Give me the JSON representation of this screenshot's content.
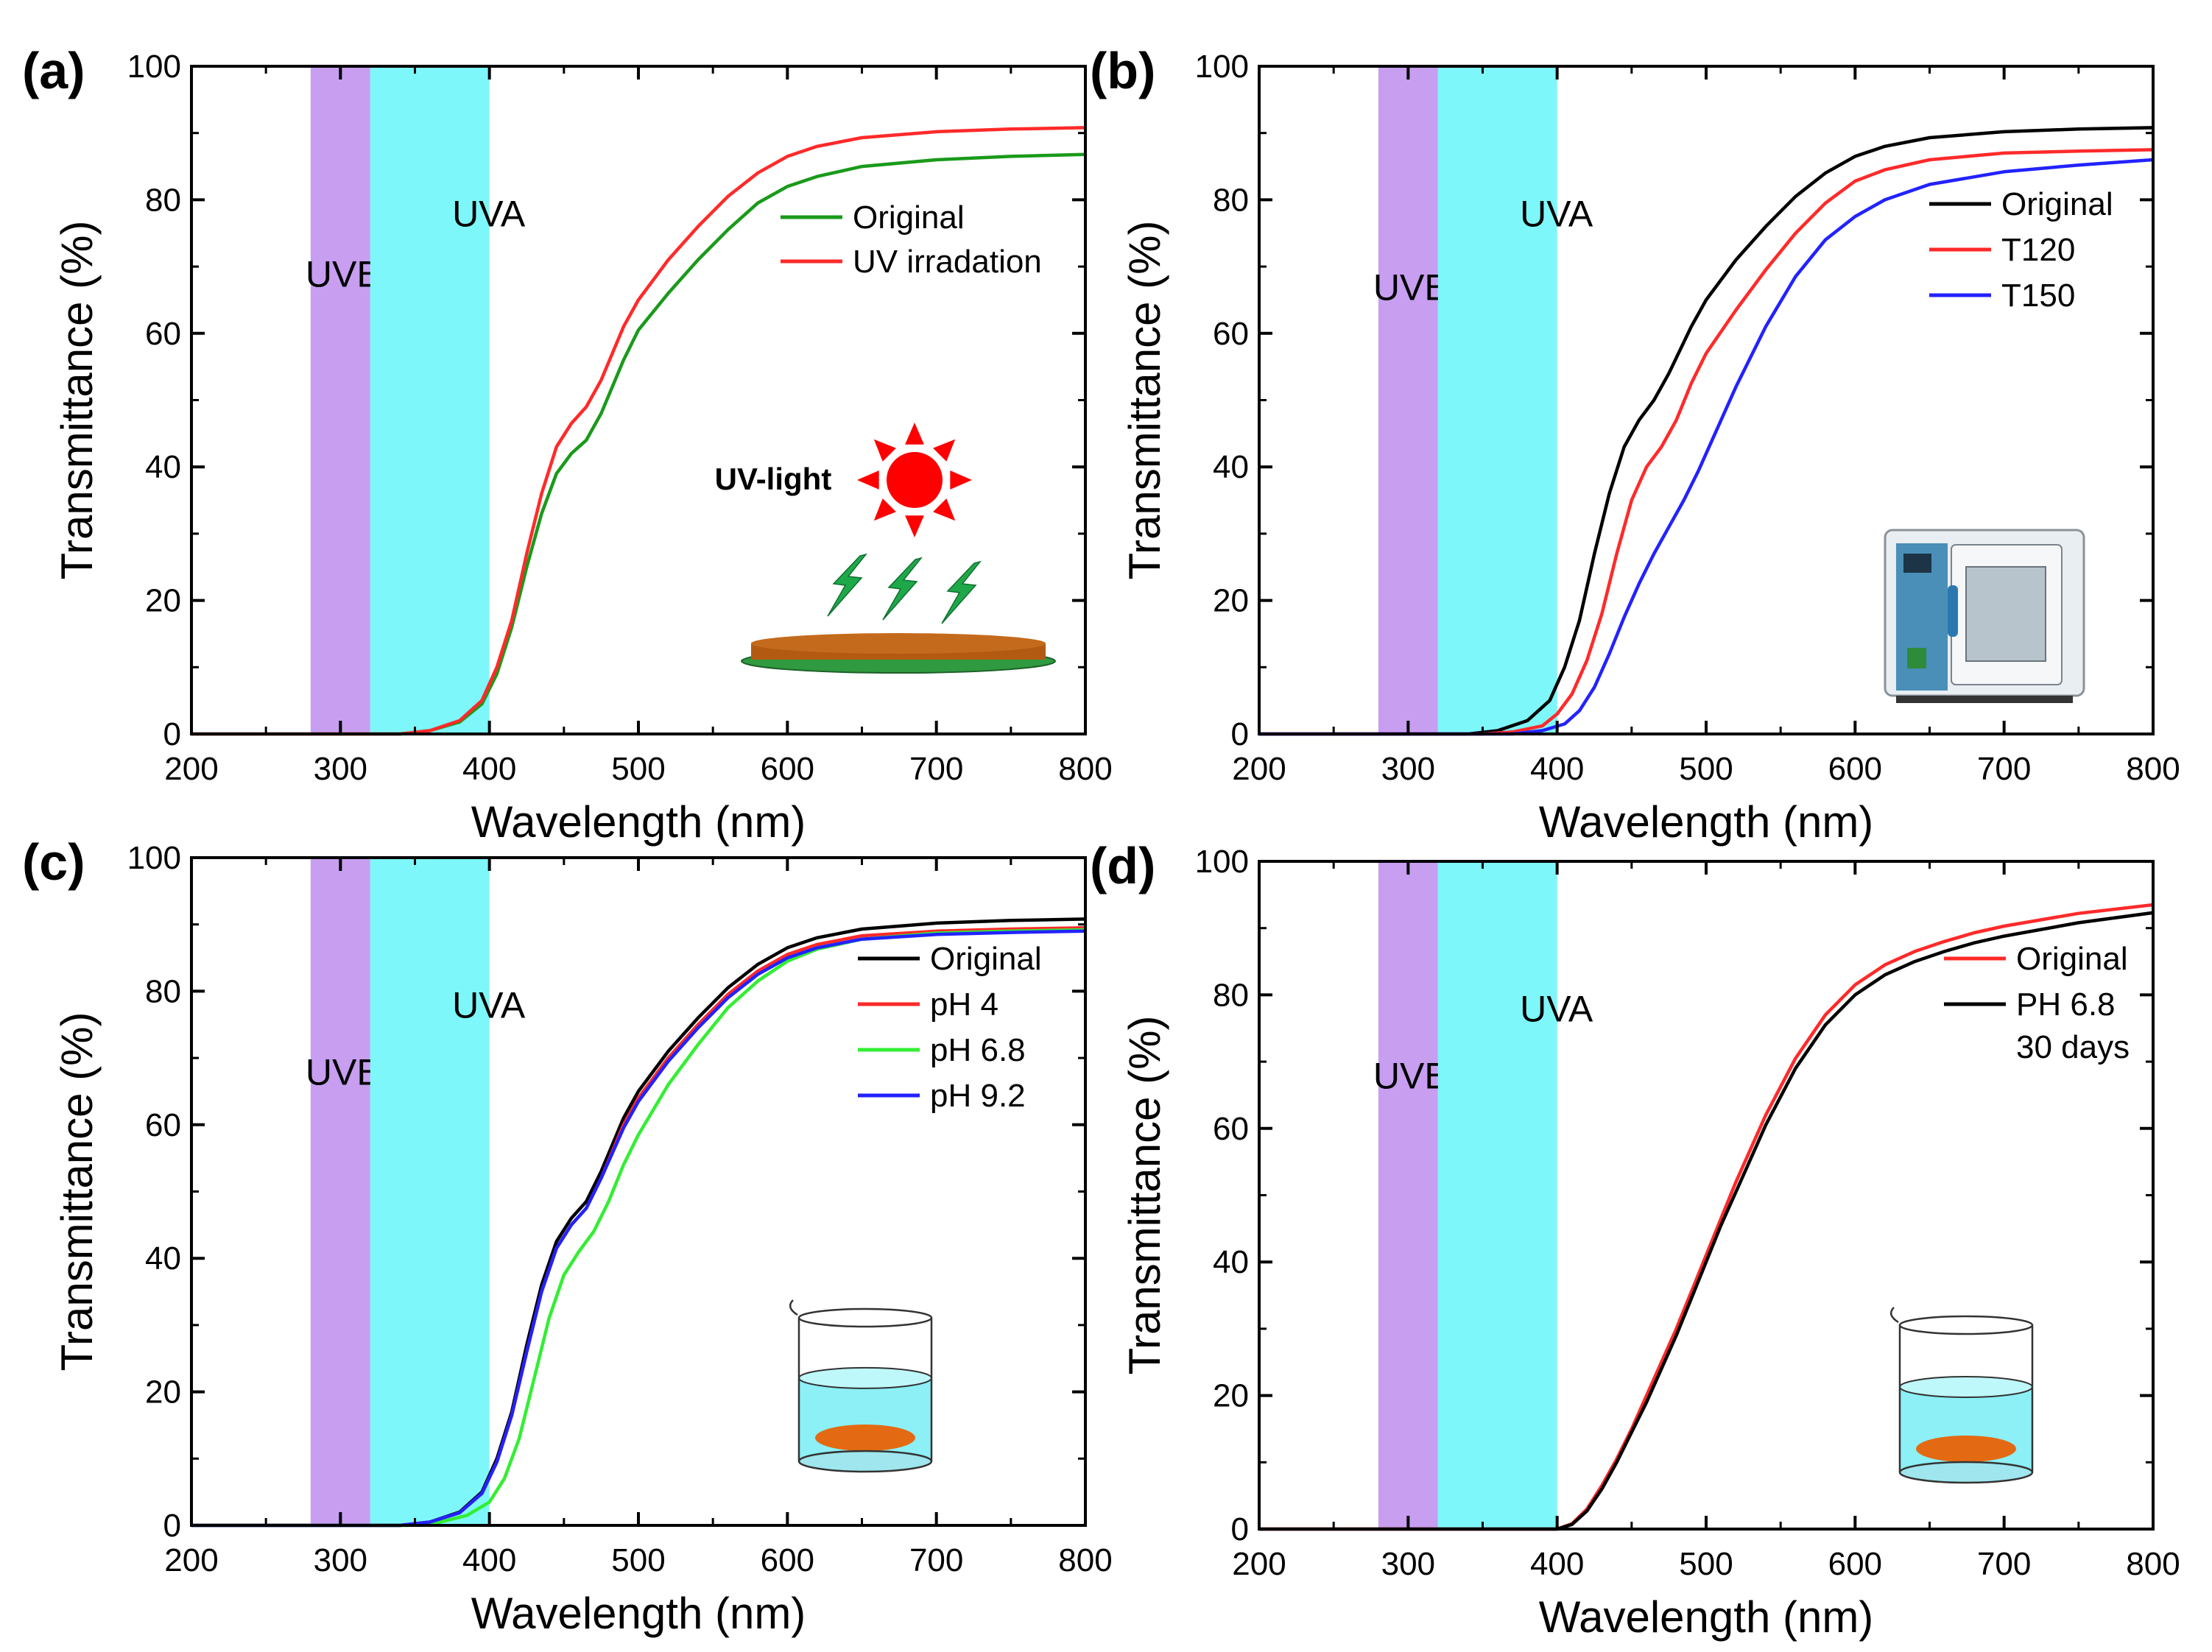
{
  "colors": {
    "uvb_band": "#c79ef0",
    "uva_band": "#7df7fa",
    "black": "#000000",
    "red": "#ff2a2a",
    "green": "#1a9a1a",
    "lime": "#33ee33",
    "blue": "#2222ff",
    "sun": "#ff0000",
    "bolt": "#1fa84a",
    "disk": "#c46a1c",
    "disk_base": "#2f9a3f",
    "water": "#8cf0f6",
    "sample": "#e36a12"
  },
  "chart_data": [
    {
      "type": "line",
      "panel_label": "(a)",
      "xlabel": "Wavelength (nm)",
      "ylabel": "Transmittance (%)",
      "xlim": [
        200,
        800
      ],
      "ylim": [
        0,
        100
      ],
      "xticks": [
        "200",
        "300",
        "400",
        "500",
        "600",
        "700",
        "800"
      ],
      "yticks": [
        "0",
        "20",
        "40",
        "60",
        "80",
        "100"
      ],
      "bands": [
        {
          "label": "UVB",
          "from": 280,
          "to": 320,
          "label_y": 67
        },
        {
          "label": "UVA",
          "from": 320,
          "to": 400,
          "label_y": 76
        }
      ],
      "legend_position": "top-right",
      "inset": "uv_light",
      "inset_label": "UV-light",
      "series": [
        {
          "name": "Original",
          "color": "green",
          "x": [
            200,
            340,
            360,
            380,
            395,
            405,
            415,
            425,
            435,
            445,
            455,
            465,
            475,
            490,
            500,
            520,
            540,
            560,
            580,
            600,
            620,
            650,
            700,
            750,
            800
          ],
          "y": [
            0,
            0,
            0.5,
            1.8,
            4.5,
            9,
            16,
            25,
            33,
            39,
            42,
            44,
            48,
            56,
            60.5,
            66,
            71,
            75.5,
            79.5,
            82,
            83.5,
            85,
            86,
            86.5,
            86.8
          ]
        },
        {
          "name": "UV irradation",
          "color": "red",
          "x": [
            200,
            340,
            360,
            380,
            395,
            405,
            415,
            425,
            435,
            445,
            455,
            465,
            475,
            490,
            500,
            520,
            540,
            560,
            580,
            600,
            620,
            650,
            700,
            750,
            800
          ],
          "y": [
            0,
            0,
            0.5,
            2,
            5,
            10,
            17,
            27,
            36,
            43,
            46.5,
            49,
            53,
            61,
            65,
            71,
            76,
            80.5,
            84,
            86.5,
            88,
            89.3,
            90.2,
            90.6,
            90.8
          ]
        }
      ]
    },
    {
      "type": "line",
      "panel_label": "(b)",
      "xlabel": "Wavelength (nm)",
      "ylabel": "Transmittance (%)",
      "xlim": [
        200,
        800
      ],
      "ylim": [
        0,
        100
      ],
      "xticks": [
        "200",
        "300",
        "400",
        "500",
        "600",
        "700",
        "800"
      ],
      "yticks": [
        "0",
        "20",
        "40",
        "60",
        "80",
        "100"
      ],
      "bands": [
        {
          "label": "UVB",
          "from": 280,
          "to": 320,
          "label_y": 65
        },
        {
          "label": "UVA",
          "from": 320,
          "to": 400,
          "label_y": 76
        }
      ],
      "legend_position": "top-right",
      "inset": "oven",
      "series": [
        {
          "name": "Original",
          "color": "black",
          "x": [
            200,
            340,
            360,
            380,
            395,
            405,
            415,
            425,
            435,
            445,
            455,
            465,
            475,
            490,
            500,
            520,
            540,
            560,
            580,
            600,
            620,
            650,
            700,
            750,
            800
          ],
          "y": [
            0,
            0,
            0.5,
            2,
            5,
            10,
            17,
            27,
            36,
            43,
            47,
            50,
            54,
            61,
            65,
            71,
            76,
            80.5,
            84,
            86.5,
            88,
            89.3,
            90.2,
            90.6,
            90.8
          ]
        },
        {
          "name": "T120",
          "color": "red",
          "x": [
            200,
            350,
            370,
            390,
            400,
            410,
            420,
            430,
            440,
            450,
            460,
            470,
            480,
            490,
            500,
            520,
            540,
            560,
            580,
            600,
            620,
            650,
            700,
            750,
            800
          ],
          "y": [
            0,
            0,
            0.3,
            1.2,
            3,
            6,
            11,
            18,
            27,
            35,
            40,
            43,
            47,
            52.5,
            57,
            63.5,
            69.5,
            75,
            79.5,
            82.8,
            84.5,
            86,
            87,
            87.3,
            87.5
          ]
        },
        {
          "name": "T150",
          "color": "blue",
          "x": [
            200,
            370,
            390,
            405,
            415,
            425,
            435,
            445,
            455,
            465,
            475,
            485,
            495,
            505,
            520,
            540,
            560,
            580,
            600,
            620,
            650,
            700,
            750,
            800
          ],
          "y": [
            0,
            0,
            0.5,
            1.5,
            3.5,
            7,
            12,
            17.5,
            22.5,
            27,
            31,
            35,
            39.5,
            44.5,
            52,
            61,
            68.5,
            74,
            77.5,
            80,
            82.3,
            84.2,
            85.2,
            86
          ]
        }
      ]
    },
    {
      "type": "line",
      "panel_label": "(c)",
      "xlabel": "Wavelength (nm)",
      "ylabel": "Transmittance (%)",
      "xlim": [
        200,
        800
      ],
      "ylim": [
        0,
        100
      ],
      "xticks": [
        "200",
        "300",
        "400",
        "500",
        "600",
        "700",
        "800"
      ],
      "yticks": [
        "0",
        "20",
        "40",
        "60",
        "80",
        "100"
      ],
      "bands": [
        {
          "label": "UVB",
          "from": 280,
          "to": 320,
          "label_y": 66
        },
        {
          "label": "UVA",
          "from": 320,
          "to": 400,
          "label_y": 76
        }
      ],
      "legend_position": "top-right",
      "inset": "beaker_c",
      "series": [
        {
          "name": "Original",
          "color": "black",
          "x": [
            200,
            340,
            360,
            380,
            395,
            405,
            415,
            425,
            435,
            445,
            455,
            465,
            475,
            490,
            500,
            520,
            540,
            560,
            580,
            600,
            620,
            650,
            700,
            750,
            800
          ],
          "y": [
            0,
            0,
            0.5,
            2,
            5,
            10,
            17,
            27,
            36,
            42.5,
            46,
            48.5,
            53,
            61,
            65,
            71,
            76,
            80.5,
            84,
            86.5,
            88,
            89.3,
            90.2,
            90.6,
            90.8
          ]
        },
        {
          "name": "pH 4",
          "color": "red",
          "x": [
            200,
            340,
            360,
            380,
            395,
            405,
            415,
            425,
            435,
            445,
            455,
            465,
            475,
            490,
            500,
            520,
            540,
            560,
            580,
            600,
            620,
            650,
            700,
            750,
            800
          ],
          "y": [
            0,
            0,
            0.5,
            1.9,
            4.8,
            9.5,
            16.5,
            26,
            35,
            41.5,
            45,
            47.5,
            52,
            60,
            64,
            70,
            75,
            79.5,
            83,
            85.5,
            87,
            88.3,
            89,
            89.3,
            89.5
          ]
        },
        {
          "name": "pH 6.8",
          "color": "lime",
          "x": [
            200,
            345,
            365,
            385,
            400,
            410,
            420,
            430,
            440,
            450,
            460,
            470,
            480,
            490,
            500,
            520,
            540,
            560,
            580,
            600,
            620,
            650,
            700,
            750,
            800
          ],
          "y": [
            0,
            0,
            0.4,
            1.5,
            3.5,
            7,
            13,
            22,
            31,
            37.5,
            41,
            44,
            48.5,
            54,
            58.5,
            66,
            72,
            77.5,
            81.5,
            84.5,
            86.3,
            87.8,
            88.7,
            89,
            89.2
          ]
        },
        {
          "name": "pH 9.2",
          "color": "blue",
          "x": [
            200,
            340,
            360,
            380,
            395,
            405,
            415,
            425,
            435,
            445,
            455,
            465,
            475,
            490,
            500,
            520,
            540,
            560,
            580,
            600,
            620,
            650,
            700,
            750,
            800
          ],
          "y": [
            0,
            0,
            0.5,
            1.9,
            4.8,
            9.5,
            16.5,
            26,
            35,
            41.5,
            45,
            47.5,
            52,
            59.5,
            63.5,
            69.5,
            74.5,
            79,
            82.5,
            85,
            86.5,
            87.8,
            88.5,
            88.8,
            89
          ]
        }
      ]
    },
    {
      "type": "line",
      "panel_label": "(d)",
      "xlabel": "Wavelength (nm)",
      "ylabel": "Transmittance (%)",
      "xlim": [
        200,
        800
      ],
      "ylim": [
        0,
        100
      ],
      "xticks": [
        "200",
        "300",
        "400",
        "500",
        "600",
        "700",
        "800"
      ],
      "yticks": [
        "0",
        "20",
        "40",
        "60",
        "80",
        "100"
      ],
      "bands": [
        {
          "label": "UVB",
          "from": 280,
          "to": 320,
          "label_y": 66
        },
        {
          "label": "UVA",
          "from": 320,
          "to": 400,
          "label_y": 76
        }
      ],
      "legend_position": "top-right",
      "inset": "beaker_d",
      "series": [
        {
          "name": "Original",
          "color": "red",
          "x": [
            200,
            400,
            410,
            420,
            430,
            440,
            450,
            460,
            470,
            480,
            490,
            500,
            510,
            520,
            540,
            560,
            580,
            600,
            620,
            640,
            660,
            680,
            700,
            750,
            800
          ],
          "y": [
            0,
            0,
            0.8,
            3,
            6.5,
            10.5,
            15,
            20,
            25,
            30,
            35.5,
            41,
            46.5,
            52,
            62,
            70.5,
            77,
            81.5,
            84.5,
            86.5,
            88,
            89.3,
            90.3,
            92.2,
            93.5
          ]
        },
        {
          "name": "PH 6.8\n30 days",
          "color": "black",
          "x": [
            200,
            400,
            410,
            420,
            430,
            440,
            450,
            460,
            470,
            480,
            490,
            500,
            510,
            520,
            540,
            560,
            580,
            600,
            620,
            640,
            660,
            680,
            700,
            750,
            800
          ],
          "y": [
            0,
            0,
            0.7,
            2.7,
            6,
            10,
            14.5,
            19,
            24,
            29,
            34.5,
            40,
            45.5,
            50.5,
            60.5,
            69,
            75.5,
            80,
            83,
            85,
            86.5,
            87.8,
            88.8,
            90.8,
            92.3
          ]
        }
      ]
    }
  ]
}
